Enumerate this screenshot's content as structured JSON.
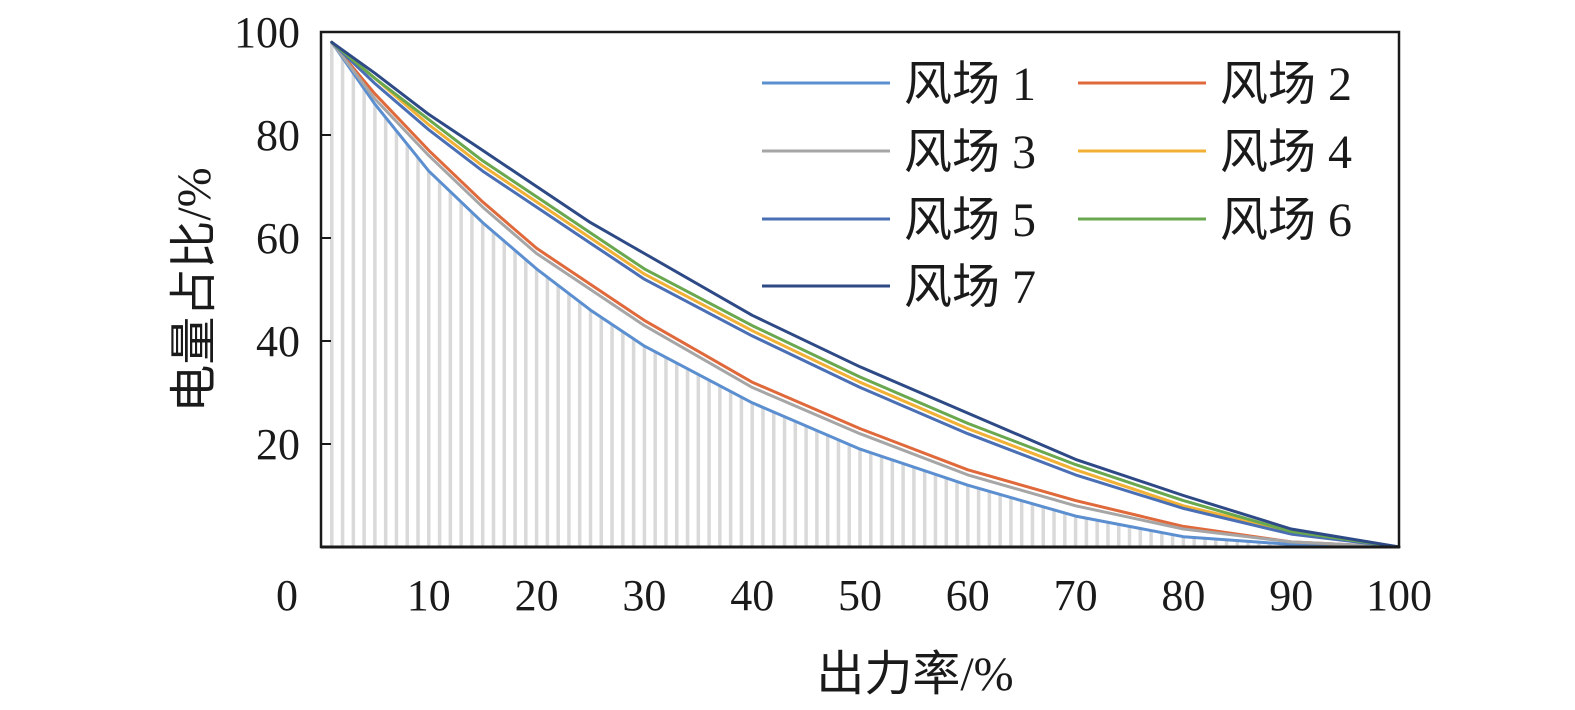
{
  "chart_data": {
    "type": "line",
    "xlabel": "出力率/%",
    "ylabel": "电量占比/%",
    "xlim": [
      0,
      100
    ],
    "ylim": [
      0,
      100
    ],
    "x_ticks": [
      "0",
      "10",
      "20",
      "30",
      "40",
      "50",
      "60",
      "70",
      "80",
      "90",
      "100"
    ],
    "y_ticks": [
      "20",
      "40",
      "60",
      "80",
      "100"
    ],
    "legend_position": "top-right",
    "background_bars": {
      "color": "#d9d9d9",
      "step": 1
    },
    "series": [
      {
        "name": "风场 1",
        "color": "#5b8fd0",
        "x": [
          1,
          5,
          10,
          15,
          20,
          25,
          30,
          40,
          50,
          60,
          70,
          80,
          90,
          100
        ],
        "y": [
          98,
          86,
          73,
          63,
          54,
          46,
          39,
          28,
          19,
          12,
          6,
          2,
          0.5,
          0
        ]
      },
      {
        "name": "风场 2",
        "color": "#e0693b",
        "x": [
          1,
          5,
          10,
          15,
          20,
          25,
          30,
          40,
          50,
          60,
          70,
          80,
          90,
          100
        ],
        "y": [
          98,
          88,
          77,
          67,
          58,
          51,
          44,
          32,
          23,
          15,
          9,
          4,
          1,
          0
        ]
      },
      {
        "name": "风场 3",
        "color": "#a6a6a6",
        "x": [
          1,
          5,
          10,
          15,
          20,
          25,
          30,
          40,
          50,
          60,
          70,
          80,
          90,
          100
        ],
        "y": [
          98,
          87,
          76,
          66,
          57,
          50,
          43,
          31,
          22,
          14,
          8,
          3.5,
          1,
          0
        ]
      },
      {
        "name": "风场 4",
        "color": "#f2b134",
        "x": [
          1,
          5,
          10,
          15,
          20,
          25,
          30,
          40,
          50,
          60,
          70,
          80,
          90,
          100
        ],
        "y": [
          98,
          91,
          82,
          74,
          67,
          60,
          53,
          42,
          32,
          23,
          15,
          8,
          3,
          0
        ]
      },
      {
        "name": "风场 5",
        "color": "#4a6fb5",
        "x": [
          1,
          5,
          10,
          15,
          20,
          25,
          30,
          40,
          50,
          60,
          70,
          80,
          90,
          100
        ],
        "y": [
          98,
          90,
          81,
          73,
          66,
          59,
          52,
          41,
          31,
          22,
          14,
          7.5,
          2.5,
          0
        ]
      },
      {
        "name": "风场 6",
        "color": "#6aa84f",
        "x": [
          1,
          5,
          10,
          15,
          20,
          25,
          30,
          40,
          50,
          60,
          70,
          80,
          90,
          100
        ],
        "y": [
          98,
          91,
          83,
          75,
          68,
          61,
          54,
          43,
          33,
          24,
          16,
          9,
          3,
          0
        ]
      },
      {
        "name": "风场 7",
        "color": "#2e4a86",
        "x": [
          1,
          5,
          10,
          15,
          20,
          25,
          30,
          40,
          50,
          60,
          70,
          80,
          90,
          100
        ],
        "y": [
          98,
          92,
          84,
          77,
          70,
          63,
          57,
          45,
          35,
          26,
          17,
          10,
          3.5,
          0
        ]
      }
    ]
  }
}
